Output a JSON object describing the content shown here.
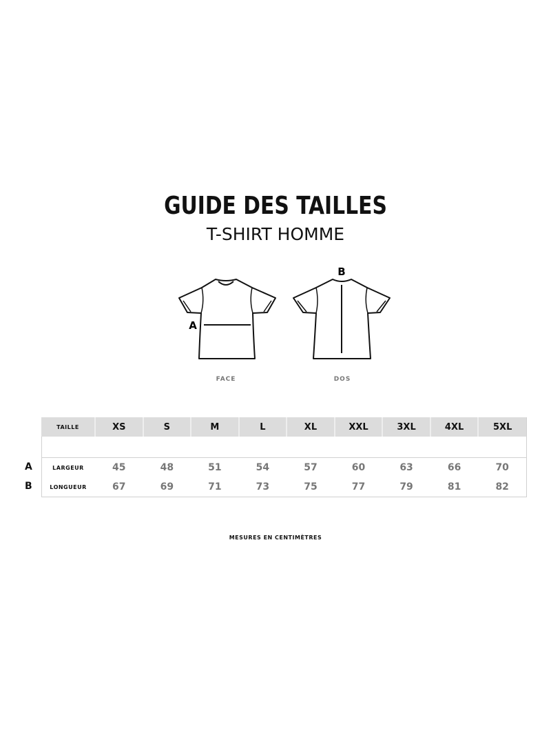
{
  "title": "GUIDE DES TAILLES",
  "subtitle": "T-SHIRT HOMME",
  "diagram": {
    "face_label": "FACE",
    "back_label": "DOS",
    "measure_a": "A",
    "measure_b": "B"
  },
  "table": {
    "header_label": "TAILLE",
    "sizes": [
      "XS",
      "S",
      "M",
      "L",
      "XL",
      "XXL",
      "3XL",
      "4XL",
      "5XL"
    ],
    "rows": [
      {
        "key": "A",
        "label": "LARGEUR",
        "values": [
          "45",
          "48",
          "51",
          "54",
          "57",
          "60",
          "63",
          "66",
          "70"
        ]
      },
      {
        "key": "B",
        "label": "LONGUEUR",
        "values": [
          "67",
          "69",
          "71",
          "73",
          "75",
          "77",
          "79",
          "81",
          "82"
        ]
      }
    ]
  },
  "footer": "MESURES EN CENTIMÈTRES"
}
